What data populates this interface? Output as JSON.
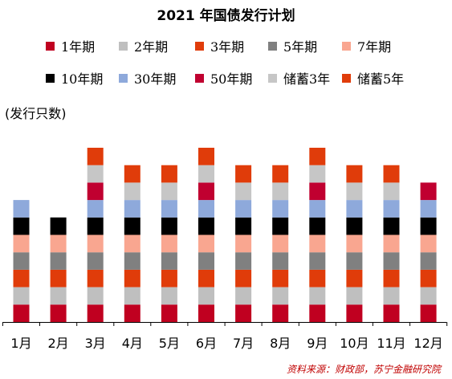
{
  "chart_data": {
    "type": "bar",
    "title": "2021 年国债发行计划",
    "ylabel": "(发行只数)",
    "categories": [
      "1月",
      "2月",
      "3月",
      "4月",
      "5月",
      "6月",
      "7月",
      "8月",
      "9月",
      "10月",
      "11月",
      "12月"
    ],
    "series": [
      {
        "name": "1年期",
        "color": "#c00020",
        "values": [
          1,
          1,
          1,
          1,
          1,
          1,
          1,
          1,
          1,
          1,
          1,
          1
        ]
      },
      {
        "name": "2年期",
        "color": "#bfbfbf",
        "values": [
          1,
          1,
          1,
          1,
          1,
          1,
          1,
          1,
          1,
          1,
          1,
          1
        ]
      },
      {
        "name": "3年期",
        "color": "#e03c0a",
        "values": [
          1,
          1,
          1,
          1,
          1,
          1,
          1,
          1,
          1,
          1,
          1,
          1
        ]
      },
      {
        "name": "5年期",
        "color": "#808080",
        "values": [
          1,
          1,
          1,
          1,
          1,
          1,
          1,
          1,
          1,
          1,
          1,
          1
        ]
      },
      {
        "name": "7年期",
        "color": "#f9a690",
        "values": [
          1,
          1,
          1,
          1,
          1,
          1,
          1,
          1,
          1,
          1,
          1,
          1
        ]
      },
      {
        "name": "10年期",
        "color": "#000000",
        "values": [
          1,
          1,
          1,
          1,
          1,
          1,
          1,
          1,
          1,
          1,
          1,
          1
        ]
      },
      {
        "name": "30年期",
        "color": "#8ea9db",
        "values": [
          1,
          0,
          1,
          1,
          1,
          1,
          1,
          1,
          1,
          1,
          1,
          1
        ]
      },
      {
        "name": "50年期",
        "color": "#c00030",
        "values": [
          0,
          0,
          1,
          0,
          0,
          1,
          0,
          0,
          1,
          0,
          0,
          1
        ]
      },
      {
        "name": "储蓄3年",
        "color": "#c6c6c6",
        "values": [
          0,
          0,
          1,
          1,
          1,
          1,
          1,
          1,
          1,
          1,
          1,
          0
        ]
      },
      {
        "name": "储蓄5年",
        "color": "#e03c0a",
        "values": [
          0,
          0,
          1,
          1,
          1,
          1,
          1,
          1,
          1,
          1,
          1,
          0
        ]
      }
    ],
    "stacked": true,
    "legend_position": "top"
  },
  "source": "资料来源：财政部，苏宁金融研究院"
}
